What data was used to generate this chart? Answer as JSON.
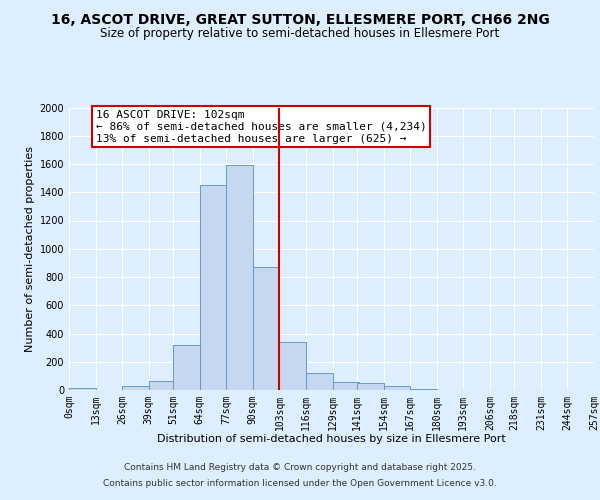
{
  "title": "16, ASCOT DRIVE, GREAT SUTTON, ELLESMERE PORT, CH66 2NG",
  "subtitle": "Size of property relative to semi-detached houses in Ellesmere Port",
  "xlabel": "Distribution of semi-detached houses by size in Ellesmere Port",
  "ylabel": "Number of semi-detached properties",
  "annotation_title": "16 ASCOT DRIVE: 102sqm",
  "annotation_line1": "← 86% of semi-detached houses are smaller (4,234)",
  "annotation_line2": "13% of semi-detached houses are larger (625) →",
  "bar_left_edges": [
    0,
    13,
    26,
    39,
    51,
    64,
    77,
    90,
    103,
    116,
    129,
    141,
    154,
    167,
    180,
    193,
    206,
    218,
    231,
    244
  ],
  "bar_widths": [
    13,
    13,
    13,
    13,
    13,
    13,
    13,
    13,
    13,
    13,
    13,
    13,
    13,
    13,
    13,
    13,
    13,
    13,
    13,
    13
  ],
  "bar_heights": [
    15,
    0,
    30,
    65,
    320,
    1450,
    1590,
    870,
    340,
    120,
    55,
    50,
    25,
    5,
    0,
    0,
    0,
    0,
    0,
    0
  ],
  "bar_color": "#c5d8f0",
  "bar_edge_color": "#6699cc",
  "vline_color": "#cc0000",
  "vline_x": 103,
  "background_color": "#ddeeff",
  "plot_bg_color": "#ddeeff",
  "ylim": [
    0,
    2000
  ],
  "yticks": [
    0,
    200,
    400,
    600,
    800,
    1000,
    1200,
    1400,
    1600,
    1800,
    2000
  ],
  "x_tick_labels": [
    "0sqm",
    "13sqm",
    "26sqm",
    "39sqm",
    "51sqm",
    "64sqm",
    "77sqm",
    "90sqm",
    "103sqm",
    "116sqm",
    "129sqm",
    "141sqm",
    "154sqm",
    "167sqm",
    "180sqm",
    "193sqm",
    "206sqm",
    "218sqm",
    "231sqm",
    "244sqm",
    "257sqm"
  ],
  "x_tick_positions": [
    0,
    13,
    26,
    39,
    51,
    64,
    77,
    90,
    103,
    116,
    129,
    141,
    154,
    167,
    180,
    193,
    206,
    218,
    231,
    244,
    257
  ],
  "footnote1": "Contains HM Land Registry data © Crown copyright and database right 2025.",
  "footnote2": "Contains public sector information licensed under the Open Government Licence v3.0.",
  "title_fontsize": 10,
  "subtitle_fontsize": 8.5,
  "axis_label_fontsize": 8,
  "tick_fontsize": 7,
  "annotation_fontsize": 8,
  "footnote_fontsize": 6.5
}
